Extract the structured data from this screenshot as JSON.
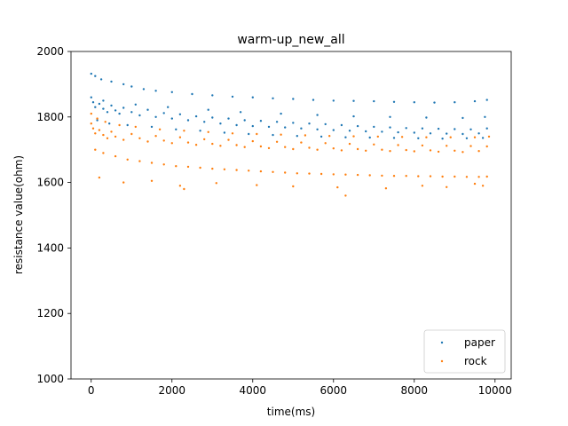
{
  "chart_data": {
    "type": "scatter",
    "title": "warm-up_new_all",
    "xlabel": "time(ms)",
    "ylabel": "resistance value(ohm)",
    "xlim": [
      -500,
      10400
    ],
    "ylim": [
      1000,
      2000
    ],
    "xticks": [
      0,
      2000,
      4000,
      6000,
      8000,
      10000
    ],
    "yticks": [
      1000,
      1200,
      1400,
      1600,
      1800,
      2000
    ],
    "grid": false,
    "legend_position": "bottom-right",
    "series": [
      {
        "name": "paper",
        "color": "#1f77b4",
        "points": [
          [
            0,
            1932
          ],
          [
            100,
            1925
          ],
          [
            250,
            1915
          ],
          [
            500,
            1908
          ],
          [
            800,
            1900
          ],
          [
            1000,
            1893
          ],
          [
            1300,
            1885
          ],
          [
            1600,
            1880
          ],
          [
            2000,
            1876
          ],
          [
            2500,
            1870
          ],
          [
            3000,
            1866
          ],
          [
            3500,
            1862
          ],
          [
            4000,
            1860
          ],
          [
            4500,
            1857
          ],
          [
            5000,
            1855
          ],
          [
            5500,
            1852
          ],
          [
            6000,
            1850
          ],
          [
            6500,
            1849
          ],
          [
            7000,
            1848
          ],
          [
            7500,
            1846
          ],
          [
            8000,
            1845
          ],
          [
            8500,
            1844
          ],
          [
            9000,
            1845
          ],
          [
            9500,
            1848
          ],
          [
            9800,
            1852
          ],
          [
            0,
            1860
          ],
          [
            50,
            1845
          ],
          [
            100,
            1830
          ],
          [
            200,
            1840
          ],
          [
            300,
            1825
          ],
          [
            400,
            1815
          ],
          [
            500,
            1835
          ],
          [
            600,
            1820
          ],
          [
            700,
            1810
          ],
          [
            800,
            1828
          ],
          [
            1000,
            1815
          ],
          [
            1200,
            1805
          ],
          [
            1400,
            1822
          ],
          [
            1600,
            1800
          ],
          [
            1800,
            1812
          ],
          [
            2000,
            1795
          ],
          [
            2200,
            1808
          ],
          [
            2400,
            1790
          ],
          [
            2600,
            1802
          ],
          [
            2800,
            1785
          ],
          [
            3000,
            1798
          ],
          [
            3200,
            1780
          ],
          [
            3400,
            1795
          ],
          [
            3600,
            1775
          ],
          [
            3800,
            1790
          ],
          [
            4000,
            1772
          ],
          [
            4200,
            1788
          ],
          [
            4400,
            1770
          ],
          [
            4600,
            1785
          ],
          [
            4800,
            1768
          ],
          [
            5000,
            1782
          ],
          [
            5200,
            1765
          ],
          [
            5400,
            1780
          ],
          [
            5600,
            1762
          ],
          [
            5800,
            1778
          ],
          [
            6000,
            1760
          ],
          [
            6200,
            1775
          ],
          [
            6400,
            1758
          ],
          [
            6600,
            1772
          ],
          [
            6800,
            1756
          ],
          [
            7000,
            1770
          ],
          [
            7200,
            1755
          ],
          [
            7400,
            1768
          ],
          [
            7600,
            1753
          ],
          [
            7800,
            1766
          ],
          [
            8000,
            1752
          ],
          [
            8200,
            1765
          ],
          [
            8400,
            1750
          ],
          [
            8600,
            1764
          ],
          [
            8800,
            1749
          ],
          [
            9000,
            1763
          ],
          [
            9200,
            1748
          ],
          [
            9400,
            1762
          ],
          [
            9600,
            1750
          ],
          [
            9800,
            1765
          ],
          [
            150,
            1790
          ],
          [
            450,
            1780
          ],
          [
            900,
            1775
          ],
          [
            1500,
            1770
          ],
          [
            2100,
            1762
          ],
          [
            2700,
            1758
          ],
          [
            3300,
            1752
          ],
          [
            3900,
            1748
          ],
          [
            4500,
            1745
          ],
          [
            5100,
            1742
          ],
          [
            5700,
            1740
          ],
          [
            6300,
            1738
          ],
          [
            6900,
            1737
          ],
          [
            7500,
            1736
          ],
          [
            8100,
            1735
          ],
          [
            8700,
            1734
          ],
          [
            9300,
            1735
          ],
          [
            9700,
            1736
          ],
          [
            300,
            1850
          ],
          [
            1100,
            1838
          ],
          [
            1900,
            1830
          ],
          [
            2900,
            1822
          ],
          [
            3700,
            1815
          ],
          [
            4700,
            1810
          ],
          [
            5600,
            1806
          ],
          [
            6500,
            1802
          ],
          [
            7400,
            1800
          ],
          [
            8300,
            1798
          ],
          [
            9200,
            1797
          ],
          [
            9750,
            1800
          ]
        ]
      },
      {
        "name": "rock",
        "color": "#ff7f0e",
        "points": [
          [
            0,
            1780
          ],
          [
            50,
            1765
          ],
          [
            100,
            1750
          ],
          [
            200,
            1760
          ],
          [
            300,
            1745
          ],
          [
            400,
            1735
          ],
          [
            500,
            1755
          ],
          [
            600,
            1740
          ],
          [
            800,
            1730
          ],
          [
            1000,
            1748
          ],
          [
            1200,
            1735
          ],
          [
            1400,
            1725
          ],
          [
            1600,
            1742
          ],
          [
            1800,
            1728
          ],
          [
            2000,
            1720
          ],
          [
            2200,
            1738
          ],
          [
            2400,
            1722
          ],
          [
            2600,
            1715
          ],
          [
            2800,
            1732
          ],
          [
            3000,
            1718
          ],
          [
            3200,
            1712
          ],
          [
            3400,
            1730
          ],
          [
            3600,
            1714
          ],
          [
            3800,
            1708
          ],
          [
            4000,
            1726
          ],
          [
            4200,
            1710
          ],
          [
            4400,
            1705
          ],
          [
            4600,
            1724
          ],
          [
            4800,
            1708
          ],
          [
            5000,
            1702
          ],
          [
            5200,
            1722
          ],
          [
            5400,
            1706
          ],
          [
            5600,
            1700
          ],
          [
            5800,
            1720
          ],
          [
            6000,
            1704
          ],
          [
            6200,
            1698
          ],
          [
            6400,
            1718
          ],
          [
            6600,
            1702
          ],
          [
            6800,
            1697
          ],
          [
            7000,
            1716
          ],
          [
            7200,
            1700
          ],
          [
            7400,
            1696
          ],
          [
            7600,
            1714
          ],
          [
            7800,
            1699
          ],
          [
            8000,
            1695
          ],
          [
            8200,
            1713
          ],
          [
            8400,
            1698
          ],
          [
            8600,
            1694
          ],
          [
            8800,
            1712
          ],
          [
            9000,
            1697
          ],
          [
            9200,
            1693
          ],
          [
            9400,
            1711
          ],
          [
            9600,
            1696
          ],
          [
            9800,
            1710
          ],
          [
            100,
            1700
          ],
          [
            300,
            1690
          ],
          [
            600,
            1680
          ],
          [
            900,
            1670
          ],
          [
            1200,
            1665
          ],
          [
            1500,
            1660
          ],
          [
            1800,
            1655
          ],
          [
            2100,
            1650
          ],
          [
            2400,
            1648
          ],
          [
            2700,
            1645
          ],
          [
            3000,
            1642
          ],
          [
            3300,
            1640
          ],
          [
            3600,
            1638
          ],
          [
            3900,
            1636
          ],
          [
            4200,
            1634
          ],
          [
            4500,
            1632
          ],
          [
            4800,
            1630
          ],
          [
            5100,
            1628
          ],
          [
            5400,
            1627
          ],
          [
            5700,
            1626
          ],
          [
            6000,
            1625
          ],
          [
            6300,
            1624
          ],
          [
            6600,
            1623
          ],
          [
            6900,
            1622
          ],
          [
            7200,
            1621
          ],
          [
            7500,
            1620
          ],
          [
            7800,
            1620
          ],
          [
            8100,
            1619
          ],
          [
            8400,
            1619
          ],
          [
            8700,
            1618
          ],
          [
            9000,
            1618
          ],
          [
            9300,
            1617
          ],
          [
            9600,
            1617
          ],
          [
            9800,
            1618
          ],
          [
            200,
            1615
          ],
          [
            800,
            1600
          ],
          [
            1500,
            1605
          ],
          [
            2200,
            1590
          ],
          [
            2300,
            1580
          ],
          [
            3100,
            1598
          ],
          [
            4100,
            1592
          ],
          [
            5000,
            1588
          ],
          [
            6100,
            1585
          ],
          [
            6300,
            1560
          ],
          [
            7300,
            1582
          ],
          [
            8200,
            1590
          ],
          [
            8800,
            1586
          ],
          [
            9500,
            1596
          ],
          [
            9700,
            1590
          ],
          [
            0,
            1810
          ],
          [
            150,
            1795
          ],
          [
            350,
            1785
          ],
          [
            700,
            1775
          ],
          [
            1100,
            1770
          ],
          [
            1700,
            1762
          ],
          [
            2300,
            1758
          ],
          [
            2900,
            1754
          ],
          [
            3500,
            1750
          ],
          [
            4100,
            1748
          ],
          [
            4700,
            1746
          ],
          [
            5300,
            1744
          ],
          [
            5900,
            1742
          ],
          [
            6500,
            1741
          ],
          [
            7100,
            1740
          ],
          [
            7700,
            1739
          ],
          [
            8300,
            1738
          ],
          [
            8900,
            1738
          ],
          [
            9500,
            1738
          ],
          [
            9850,
            1740
          ]
        ]
      }
    ]
  }
}
